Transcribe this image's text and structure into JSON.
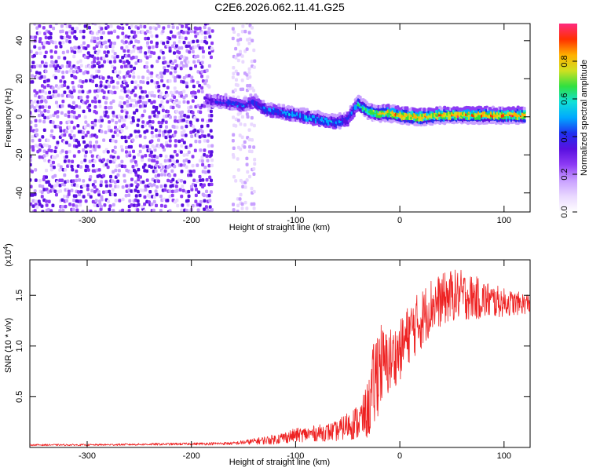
{
  "title": "C2E6.2026.062.11.41.G25",
  "chart_data": [
    {
      "type": "heatmap",
      "xlabel": "Height of straight line (km)",
      "ylabel": "Frequency (Hz)",
      "xlim": [
        -355,
        125
      ],
      "ylim": [
        -50,
        49
      ],
      "xticks": [
        -300,
        -200,
        -100,
        0,
        100
      ],
      "yticks": [
        -40,
        -20,
        0,
        20,
        40
      ],
      "xtick_labels": [
        "-300",
        "-200",
        "-100",
        "0",
        "100"
      ],
      "ytick_labels": [
        "-40",
        "-20",
        "0",
        "20",
        "40"
      ],
      "colorbar": {
        "label": "Normalized spectral amplitude",
        "range": [
          0.0,
          1.0
        ],
        "ticks": [
          0.0,
          0.2,
          0.4,
          0.6,
          0.8
        ],
        "tick_labels": [
          "0.0",
          "0.2",
          "0.4",
          "0.6",
          "0.8"
        ],
        "colors": [
          "#ffffff",
          "#e9d8ff",
          "#c8a0ff",
          "#8e3cf5",
          "#5a10e0",
          "#2030f0",
          "#00a8ff",
          "#10e0d8",
          "#30e040",
          "#d0e020",
          "#ffb000",
          "#ff3000",
          "#ff2a80"
        ]
      },
      "noise_region_km": [
        -355,
        -180
      ],
      "signal_track": {
        "x": [
          -185,
          -170,
          -160,
          -150,
          -140,
          -130,
          -120,
          -110,
          -100,
          -90,
          -80,
          -70,
          -60,
          -50,
          -45,
          -40,
          -35,
          -30,
          -20,
          -10,
          0,
          20,
          40,
          60,
          80,
          100,
          120
        ],
        "freq": [
          9,
          8,
          7,
          6,
          8,
          4,
          3,
          2,
          1,
          0,
          -1,
          -2,
          -3,
          -1,
          3,
          7,
          5,
          3,
          2,
          2,
          1,
          0,
          1,
          1,
          1,
          1,
          1
        ],
        "amplitude": [
          0.35,
          0.4,
          0.45,
          0.45,
          0.45,
          0.5,
          0.5,
          0.5,
          0.5,
          0.55,
          0.55,
          0.55,
          0.5,
          0.45,
          0.5,
          0.6,
          0.65,
          0.7,
          0.8,
          0.85,
          0.9,
          0.9,
          0.9,
          0.9,
          0.9,
          0.9,
          0.9
        ]
      }
    },
    {
      "type": "line",
      "xlabel": "Height of straight line (km)",
      "ylabel": "SNR (10 * v/v)",
      "yscale_label": "(x10",
      "yscale_exp": "4",
      "yscale_close": ")",
      "xlim": [
        -355,
        125
      ],
      "ylim": [
        0,
        1.85
      ],
      "xticks": [
        -300,
        -200,
        -100,
        0,
        100
      ],
      "yticks": [
        0.5,
        1.0,
        1.5
      ],
      "xtick_labels": [
        "-300",
        "-200",
        "-100",
        "0",
        "100"
      ],
      "ytick_labels": [
        "0.5",
        "1.0",
        "1.5"
      ],
      "series": [
        {
          "name": "SNR",
          "color": "#ee2222",
          "x": [
            -355,
            -300,
            -250,
            -200,
            -160,
            -140,
            -120,
            -100,
            -80,
            -60,
            -50,
            -40,
            -35,
            -30,
            -25,
            -20,
            -15,
            -10,
            -5,
            0,
            10,
            20,
            30,
            40,
            50,
            60,
            70,
            80,
            90,
            100,
            110,
            125
          ],
          "y": [
            0.025,
            0.025,
            0.03,
            0.035,
            0.04,
            0.06,
            0.08,
            0.12,
            0.14,
            0.16,
            0.22,
            0.25,
            0.3,
            0.38,
            0.6,
            0.85,
            0.8,
            0.85,
            0.9,
            0.95,
            1.15,
            1.25,
            1.4,
            1.45,
            1.5,
            1.5,
            1.48,
            1.46,
            1.44,
            1.43,
            1.42,
            1.42
          ],
          "noise_amplitude": [
            0.008,
            0.008,
            0.01,
            0.012,
            0.015,
            0.03,
            0.05,
            0.07,
            0.08,
            0.1,
            0.14,
            0.18,
            0.22,
            0.3,
            0.45,
            0.5,
            0.35,
            0.35,
            0.3,
            0.3,
            0.3,
            0.3,
            0.28,
            0.26,
            0.26,
            0.25,
            0.22,
            0.2,
            0.17,
            0.14,
            0.12,
            0.1
          ]
        }
      ]
    }
  ]
}
